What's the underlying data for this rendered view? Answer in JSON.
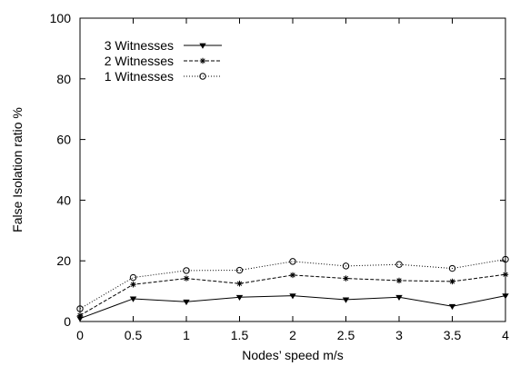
{
  "chart_data": {
    "type": "line",
    "xlabel": "Nodes’ speed m/s",
    "ylabel": "False Isolation ratio %",
    "xlim": [
      0,
      4
    ],
    "ylim": [
      0,
      100
    ],
    "x": [
      0,
      0.5,
      1,
      1.5,
      2,
      2.5,
      3,
      3.5,
      4
    ],
    "x_ticks": [
      "0",
      "0.5",
      "1",
      "1.5",
      "2",
      "2.5",
      "3",
      "3.5",
      "4"
    ],
    "y_ticks": [
      "0",
      "20",
      "40",
      "60",
      "80",
      "100"
    ],
    "grid": false,
    "legend_position": "top-left",
    "series": [
      {
        "name": "3 Witnesses",
        "marker": "triangle-down",
        "line_style": "solid",
        "values": [
          1.0,
          7.5,
          6.5,
          8.0,
          8.5,
          7.2,
          8.0,
          5.0,
          8.5
        ]
      },
      {
        "name": "2 Witnesses",
        "marker": "star",
        "line_style": "dashed",
        "values": [
          2.0,
          12.2,
          14.2,
          12.5,
          15.3,
          14.2,
          13.5,
          13.2,
          15.5
        ]
      },
      {
        "name": "1 Witnesses",
        "marker": "circle",
        "line_style": "dotted",
        "values": [
          4.2,
          14.5,
          16.8,
          16.9,
          19.8,
          18.3,
          18.8,
          17.5,
          20.5
        ]
      }
    ]
  }
}
